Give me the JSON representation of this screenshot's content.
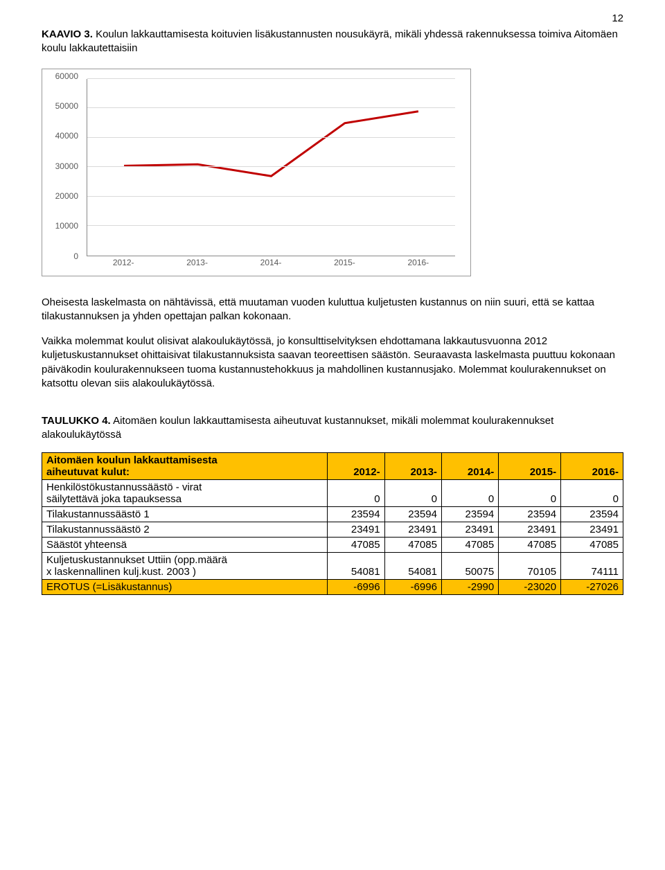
{
  "page_number": "12",
  "heading_strong": "KAAVIO 3.",
  "heading_rest": " Koulun lakkauttamisesta koituvien lisäkustannusten nousukäyrä, mikäli yhdessä rakennuksessa toimiva Aitomäen koulu lakkautettaisiin",
  "chart": {
    "type": "line",
    "categories": [
      "2012-",
      "2013-",
      "2014-",
      "2015-",
      "2016-"
    ],
    "values": [
      30500,
      31000,
      27000,
      45000,
      49000
    ],
    "ylim": [
      0,
      60000
    ],
    "ytick_step": 10000,
    "yticks": [
      "0",
      "10000",
      "20000",
      "30000",
      "40000",
      "50000",
      "60000"
    ],
    "line_color": "#c00000",
    "line_width": 3,
    "grid_color": "#d9d9d9",
    "axis_color": "#888888",
    "tick_font_color": "#595959",
    "background_color": "#ffffff"
  },
  "para1": "Oheisesta laskelmasta on nähtävissä, että muutaman vuoden kuluttua kuljetusten kustannus on niin suuri, että se kattaa tilakustannuksen ja yhden opettajan palkan kokonaan.",
  "para2": "Vaikka molemmat koulut olisivat alakoulukäytössä, jo konsulttiselvityksen ehdottamana lakkautusvuonna 2012 kuljetuskustannukset ohittaisivat tilakustannuksista saavan teoreettisen säästön. Seuraavasta laskelmasta puuttuu kokonaan päiväkodin koulurakennukseen tuoma kustannustehokkuus ja mahdollinen kustannusjako. Molemmat koulurakennukset on katsottu olevan siis alakoulukäytössä.",
  "t4_caption_strong": "TAULUKKO 4.",
  "t4_caption_rest": " Aitomäen koulun lakkauttamisesta aiheutuvat kustannukset, mikäli molemmat koulurakennukset alakoulukäytössä",
  "table": {
    "header_label": "Aitomäen koulun lakkauttamisesta aiheutuvat kulut:",
    "year_cols": [
      "2012-",
      "2013-",
      "2014-",
      "2015-",
      "2016-"
    ],
    "rows": [
      {
        "label_lines": [
          "Henkilöstökustannussäästö - virat",
          "säilytettävä joka tapauksessa"
        ],
        "vals": [
          "0",
          "0",
          "0",
          "0",
          "0"
        ]
      },
      {
        "label_lines": [
          "Tilakustannussäästö 1"
        ],
        "vals": [
          "23594",
          "23594",
          "23594",
          "23594",
          "23594"
        ]
      },
      {
        "label_lines": [
          "Tilakustannussäästö 2"
        ],
        "vals": [
          "23491",
          "23491",
          "23491",
          "23491",
          "23491"
        ]
      },
      {
        "label_lines": [
          "Säästöt yhteensä"
        ],
        "vals": [
          "47085",
          "47085",
          "47085",
          "47085",
          "47085"
        ]
      },
      {
        "label_lines": [
          "Kuljetuskustannukset Uttiin (opp.määrä",
          "x laskennallinen kulj.kust. 2003 )"
        ],
        "vals": [
          "54081",
          "54081",
          "50075",
          "70105",
          "74111"
        ]
      }
    ],
    "erotus_label": "EROTUS (=Lisäkustannus)",
    "erotus_vals": [
      "-6996",
      "-6996",
      "-2990",
      "-23020",
      "-27026"
    ],
    "header_bg": "#ffc000",
    "erotus_bg": "#ffc000"
  }
}
